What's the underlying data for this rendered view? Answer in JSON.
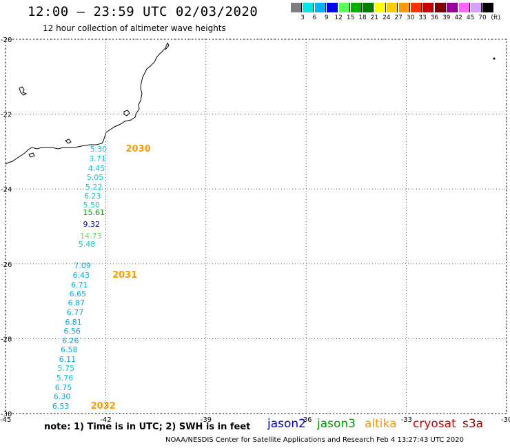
{
  "header": {
    "title": "12:00 – 23:59 UTC 02/03/2020",
    "subtitle": "12 hour collection of altimeter wave heights"
  },
  "color_scale": {
    "swatches": [
      "#7f7f7f",
      "#00e5e5",
      "#00b2ff",
      "#0000ff",
      "#57ff57",
      "#00b200",
      "#007f00",
      "#ffff00",
      "#ffcc00",
      "#ff9900",
      "#ff3300",
      "#cc0000",
      "#800000",
      "#990099",
      "#ff66ff",
      "#d9a0ff",
      "#000000"
    ],
    "labels": [
      "3",
      "6",
      "9",
      "12",
      "15",
      "18",
      "21",
      "24",
      "27",
      "30",
      "33",
      "36",
      "39",
      "42",
      "45",
      "70"
    ],
    "unit": "(ft)"
  },
  "map": {
    "lon_range": [
      -45,
      -30
    ],
    "lat_range": [
      -30,
      -20
    ],
    "lon_ticks": [
      "-45",
      "-42",
      "-39",
      "-36",
      "-33",
      "-30"
    ],
    "lat_ticks": [
      "-20",
      "-22",
      "-24",
      "-26",
      "-28",
      "-30"
    ],
    "gridlines": true
  },
  "observations": [
    {
      "value": "5.30",
      "color": "#00cccc",
      "lon": -41.85,
      "lat": -22.95
    },
    {
      "value": "3.71",
      "color": "#00cccc",
      "lon": -41.88,
      "lat": -23.21
    },
    {
      "value": "4.45",
      "color": "#00cccc",
      "lon": -41.91,
      "lat": -23.46
    },
    {
      "value": "5.05",
      "color": "#00cccc",
      "lon": -41.95,
      "lat": -23.71
    },
    {
      "value": "5.22",
      "color": "#00cccc",
      "lon": -41.99,
      "lat": -23.96
    },
    {
      "value": "6.23",
      "color": "#00cccc",
      "lon": -42.03,
      "lat": -24.2
    },
    {
      "value": "5.50",
      "color": "#00cccc",
      "lon": -42.06,
      "lat": -24.43
    },
    {
      "value": "15.61",
      "color": "#009900",
      "lon": -42.06,
      "lat": -24.65
    },
    {
      "value": "9.32",
      "color": "#0000aa",
      "lon": -42.06,
      "lat": -24.96
    },
    {
      "value": "14.73",
      "color": "#57e057",
      "lon": -42.15,
      "lat": -25.27
    },
    {
      "value": "5.48",
      "color": "#00cccc",
      "lon": -42.2,
      "lat": -25.48
    },
    {
      "value": "7.09",
      "color": "#00a8e0",
      "lon": -42.33,
      "lat": -26.06
    },
    {
      "value": "6.43",
      "color": "#00a8e0",
      "lon": -42.37,
      "lat": -26.31
    },
    {
      "value": "6.71",
      "color": "#00a8e0",
      "lon": -42.42,
      "lat": -26.57
    },
    {
      "value": "6.65",
      "color": "#00a8e0",
      "lon": -42.47,
      "lat": -26.82
    },
    {
      "value": "6.87",
      "color": "#00a8e0",
      "lon": -42.51,
      "lat": -27.06
    },
    {
      "value": "6.77",
      "color": "#00a8e0",
      "lon": -42.55,
      "lat": -27.32
    },
    {
      "value": "6.81",
      "color": "#00a8e0",
      "lon": -42.6,
      "lat": -27.56
    },
    {
      "value": "6.56",
      "color": "#00a8e0",
      "lon": -42.64,
      "lat": -27.81
    },
    {
      "value": "6.26",
      "color": "#00a8e0",
      "lon": -42.69,
      "lat": -28.06
    },
    {
      "value": "6.58",
      "color": "#00a8e0",
      "lon": -42.73,
      "lat": -28.31
    },
    {
      "value": "6.11",
      "color": "#00a8e0",
      "lon": -42.78,
      "lat": -28.56
    },
    {
      "value": "5.75",
      "color": "#00cccc",
      "lon": -42.82,
      "lat": -28.81
    },
    {
      "value": "5.76",
      "color": "#00cccc",
      "lon": -42.86,
      "lat": -29.06
    },
    {
      "value": "6.75",
      "color": "#00a8e0",
      "lon": -42.9,
      "lat": -29.31
    },
    {
      "value": "6.30",
      "color": "#00a8e0",
      "lon": -42.94,
      "lat": -29.56
    },
    {
      "value": "6.53",
      "color": "#00a8e0",
      "lon": -42.98,
      "lat": -29.81
    }
  ],
  "pass_times": [
    {
      "time": "2030",
      "color": "#ff9900",
      "lon": -41.4,
      "lat": -22.95
    },
    {
      "time": "2031",
      "color": "#ff9900",
      "lon": -41.8,
      "lat": -26.31
    },
    {
      "time": "2032",
      "color": "#ff9900",
      "lon": -42.45,
      "lat": -29.81
    }
  ],
  "footer": {
    "note": "note: 1) Time is in UTC; 2) SWH is in feet",
    "satellites": [
      {
        "name": "jason2",
        "color": "#0000cc"
      },
      {
        "name": "jason3",
        "color": "#009900"
      },
      {
        "name": "altika",
        "color": "#ff9900"
      },
      {
        "name": "cryosat",
        "color": "#cc0000"
      },
      {
        "name": "s3a",
        "color": "#990000"
      }
    ],
    "credit": "NOAA/NESDIS Center for Satellite Applications and Research     Feb  4 13:27:43 UTC 2020"
  }
}
